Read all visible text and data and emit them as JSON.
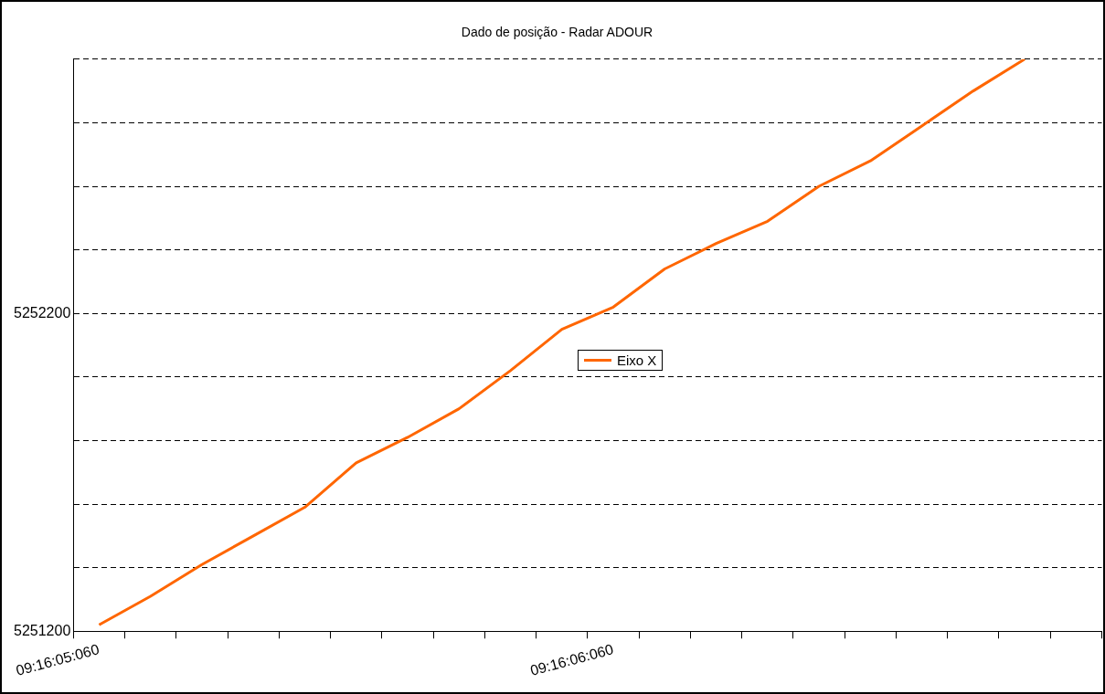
{
  "chart_data": {
    "type": "line",
    "title": "Dado de posição - Radar ADOUR",
    "categories": [
      "09:16:05:060",
      null,
      null,
      null,
      null,
      null,
      null,
      null,
      null,
      null,
      "09:16:06:060",
      null,
      null,
      null,
      null,
      null,
      null,
      null,
      null,
      null
    ],
    "series": [
      {
        "name": "Eixo X",
        "color": "#ff6600",
        "values": [
          5251220,
          5251310,
          5251410,
          5251500,
          5251590,
          5251730,
          5251810,
          5251900,
          5252020,
          5252150,
          5252220,
          5252340,
          5252420,
          5252490,
          5252600,
          5252680,
          5252790,
          5252900,
          5253000,
          null
        ]
      }
    ],
    "ylim": [
      5251200,
      5253000
    ],
    "yticks": [
      5251200,
      {
        "value": 5251400,
        "label": null
      },
      {
        "value": 5251600,
        "label": null
      },
      {
        "value": 5251800,
        "label": null
      },
      {
        "value": 5252000,
        "label": null
      },
      5252200,
      {
        "value": 5252400,
        "label": null
      },
      {
        "value": 5252600,
        "label": null
      },
      {
        "value": 5252800,
        "label": null
      },
      {
        "value": 5253000,
        "label": null
      }
    ],
    "grid": "y",
    "legend": "center",
    "marker": "none",
    "line_style": "solid"
  }
}
